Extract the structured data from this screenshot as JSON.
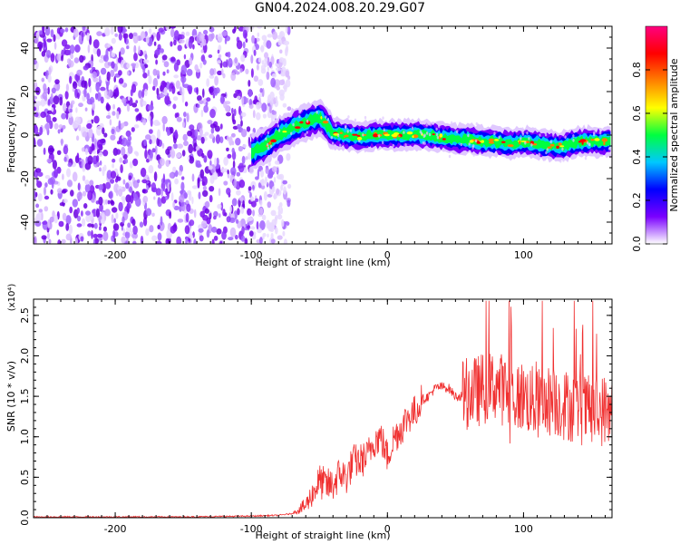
{
  "title": "GN04.2024.008.20.29.G07",
  "chart_data": [
    {
      "type": "heatmap",
      "xlabel": "Height of straight line (km)",
      "ylabel": "Frequency (Hz)",
      "xlim": [
        -260,
        165
      ],
      "ylim": [
        -50,
        50
      ],
      "xticks": [
        -200,
        -100,
        0,
        100
      ],
      "yticks": [
        -40,
        -20,
        0,
        20,
        40
      ],
      "colorbar": {
        "label": "Normalized spectral amplitude",
        "range": [
          0,
          1
        ],
        "ticks": [
          "0.0",
          "0.2",
          "0.4",
          "0.6",
          "0.8"
        ],
        "colormap": [
          "#ffffff",
          "#7a00ff",
          "#0000ff",
          "#00c8ff",
          "#00ff40",
          "#ffff00",
          "#ff8000",
          "#ff0000",
          "#ff0080"
        ]
      },
      "noise_region_x": [
        -260,
        -82
      ],
      "ridge": {
        "x": [
          -100,
          -90,
          -80,
          -70,
          -60,
          -50,
          -45,
          -40,
          -30,
          -20,
          -10,
          0,
          10,
          20,
          30,
          40,
          50,
          60,
          70,
          80,
          90,
          100,
          110,
          120,
          130,
          140,
          150,
          165
        ],
        "frequency": [
          -8,
          -5,
          0,
          3,
          6,
          8,
          5,
          1,
          0,
          -1,
          0,
          0,
          0,
          0,
          0,
          -1,
          -2,
          -2,
          -3,
          -3,
          -4,
          -3,
          -4,
          -5,
          -5,
          -3,
          -3,
          -3
        ]
      }
    },
    {
      "type": "line",
      "xlabel": "Height of straight line (km)",
      "ylabel": "SNR (10 * v/v)",
      "yscale_label": "(x10⁴)",
      "xlim": [
        -260,
        165
      ],
      "ylim": [
        0,
        2.7
      ],
      "xticks": [
        -200,
        -100,
        0,
        100
      ],
      "yticks": [
        "0.0",
        "0.5",
        "1.0",
        "1.5",
        "2.0",
        "2.5"
      ],
      "color": "#f03030",
      "series": [
        {
          "x": [
            -260,
            -200,
            -150,
            -100,
            -80,
            -70,
            -60,
            -55,
            -50,
            -45,
            -40,
            -35,
            -30,
            -25,
            -20,
            -15,
            -10,
            -5,
            0,
            5,
            10,
            15,
            20,
            25,
            30,
            35,
            40,
            45,
            50,
            55,
            60,
            65,
            70,
            75,
            80,
            90,
            100,
            110,
            120,
            130,
            140,
            150,
            165
          ],
          "y": [
            0.01,
            0.01,
            0.01,
            0.02,
            0.03,
            0.05,
            0.15,
            0.3,
            0.45,
            0.4,
            0.4,
            0.55,
            0.5,
            0.7,
            0.7,
            0.75,
            0.95,
            1.0,
            0.75,
            1.0,
            1.1,
            1.25,
            1.3,
            1.45,
            1.5,
            1.6,
            1.62,
            1.6,
            1.5,
            1.5,
            1.55,
            1.55,
            1.6,
            1.6,
            1.65,
            1.5,
            1.5,
            1.4,
            1.45,
            1.4,
            1.35,
            1.3,
            1.35
          ]
        }
      ]
    }
  ]
}
